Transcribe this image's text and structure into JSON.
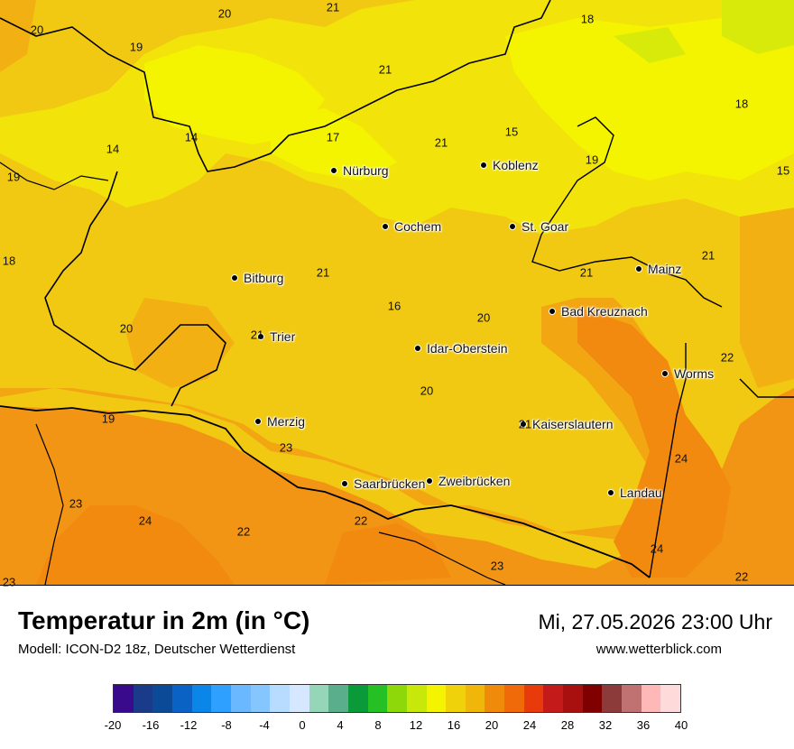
{
  "map": {
    "cities": [
      {
        "name": "Nürburg"
      },
      {
        "name": "Koblenz"
      },
      {
        "name": "Cochem"
      },
      {
        "name": "St. Goar"
      },
      {
        "name": "Mainz"
      },
      {
        "name": "Bitburg"
      },
      {
        "name": "Bad Kreuznach"
      },
      {
        "name": "Trier"
      },
      {
        "name": "Idar-Oberstein"
      },
      {
        "name": "Worms"
      },
      {
        "name": "Merzig"
      },
      {
        "name": "Kaiserslautern"
      },
      {
        "name": "Saarbrücken"
      },
      {
        "name": "Zweibrücken"
      },
      {
        "name": "Landau"
      }
    ],
    "values": [
      "20",
      "21",
      "20",
      "19",
      "18",
      "18",
      "21",
      "14",
      "17",
      "21",
      "15",
      "19",
      "19",
      "15",
      "14",
      "21",
      "21",
      "18",
      "16",
      "20",
      "21",
      "20",
      "22",
      "21",
      "20",
      "19",
      "23",
      "24",
      "23",
      "24",
      "22",
      "22",
      "24",
      "23",
      "23",
      "22",
      "21"
    ]
  },
  "title": "Temperatur in 2m (in °C)",
  "model": "Modell: ICON-D2 18z, Deutscher Wetterdienst",
  "datetime": "Mi, 27.05.2026 23:00 Uhr",
  "website": "www.wetterblick.com",
  "legend": {
    "tick_labels": [
      "-20",
      "-16",
      "-12",
      "-8",
      "-4",
      "0",
      "4",
      "8",
      "12",
      "16",
      "20",
      "24",
      "28",
      "32",
      "36",
      "40"
    ],
    "colors": [
      "#3a0a8c",
      "#1a3a8a",
      "#0a4a96",
      "#0a62c4",
      "#0a86e8",
      "#2ea0ff",
      "#6ab8ff",
      "#86c6ff",
      "#b8dcff",
      "#d6e8ff",
      "#96d6b8",
      "#5aae8c",
      "#0a9a3a",
      "#24c024",
      "#8ed80a",
      "#c8e80a",
      "#f4f400",
      "#f0d20a",
      "#f0b60a",
      "#f08a0a",
      "#f06a0a",
      "#e83a0a",
      "#c41a1a",
      "#a80f0f",
      "#800000",
      "#8c3a3a",
      "#c07272",
      "#ffb8b8",
      "#ffdada"
    ]
  },
  "colors": {
    "warm": "#f29414",
    "mid": "#f2c914",
    "cool": "#f0f000"
  }
}
